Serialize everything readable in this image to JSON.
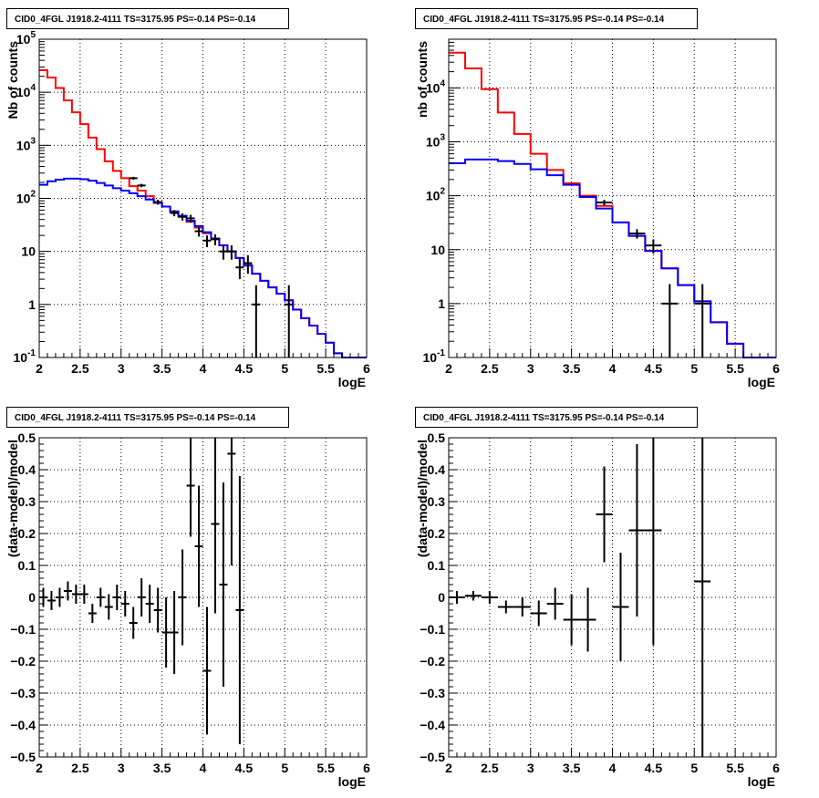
{
  "chart_data": [
    {
      "id": "tl",
      "type": "line",
      "title": "CID0_4FGL J1918.2-4111 TS=3175.95 PS=-0.14 PS=-0.14",
      "xlabel": "logE",
      "ylabel": "Nb of counts",
      "xlim": [
        2,
        6
      ],
      "ylim": [
        0.1,
        100000
      ],
      "log_y": true,
      "grid": true,
      "xticks": [
        "2",
        "2.5",
        "3",
        "3.5",
        "4",
        "4.5",
        "5",
        "5.5",
        "6"
      ],
      "yticks": [
        {
          "v": 0.1,
          "base": "10",
          "exp": "-1"
        },
        {
          "v": 1,
          "label": "1"
        },
        {
          "v": 10,
          "label": "10"
        },
        {
          "v": 100,
          "base": "10",
          "exp": "2"
        },
        {
          "v": 1000,
          "base": "10",
          "exp": "3"
        },
        {
          "v": 10000,
          "base": "10",
          "exp": "4"
        },
        {
          "v": 100000,
          "base": "10",
          "exp": "5"
        }
      ],
      "series": [
        {
          "color": "#ff0000",
          "bin_edges": [
            2,
            2.1,
            2.2,
            2.3,
            2.4,
            2.5,
            2.6,
            2.7,
            2.8,
            2.9,
            3,
            3.1,
            3.2,
            3.3,
            3.4,
            3.5,
            3.6,
            3.7,
            3.8,
            3.9,
            4,
            4.1,
            4.2,
            4.3,
            4.4,
            4.5,
            4.6,
            4.7,
            4.8,
            4.9,
            5,
            5.1,
            5.2,
            5.3,
            5.4,
            5.5,
            5.6,
            5.7,
            5.8,
            5.9,
            6
          ],
          "values": [
            26000,
            19000,
            12000,
            7000,
            4200,
            2500,
            1400,
            850,
            500,
            330,
            240,
            170,
            140,
            110,
            85,
            70,
            55,
            45,
            36,
            28,
            22,
            17,
            13,
            10,
            7.5,
            5.5,
            3.8,
            2.8,
            2.1,
            1.6,
            1.2,
            0.8,
            0.55,
            0.4,
            0.28,
            0.19,
            0.12,
            0.1,
            0.1,
            0.1
          ]
        },
        {
          "color": "#0000ff",
          "bin_edges": [
            2,
            2.1,
            2.2,
            2.3,
            2.4,
            2.5,
            2.6,
            2.7,
            2.8,
            2.9,
            3,
            3.1,
            3.2,
            3.3,
            3.4,
            3.5,
            3.6,
            3.7,
            3.8,
            3.9,
            4,
            4.1,
            4.2,
            4.3,
            4.4,
            4.5,
            4.6,
            4.7,
            4.8,
            4.9,
            5,
            5.1,
            5.2,
            5.3,
            5.4,
            5.5,
            5.6,
            5.7,
            5.8,
            5.9,
            6
          ],
          "values": [
            180,
            210,
            225,
            235,
            235,
            230,
            215,
            195,
            175,
            155,
            140,
            125,
            110,
            95,
            82,
            70,
            57,
            47,
            38,
            30,
            23,
            17.5,
            13,
            10,
            7.5,
            5.4,
            3.8,
            2.8,
            2.1,
            1.6,
            1.2,
            0.8,
            0.55,
            0.4,
            0.28,
            0.19,
            0.12,
            0.1,
            0.1,
            0.1
          ]
        }
      ],
      "points": [
        {
          "x": 3.15,
          "y": 240,
          "xerr": 0.05,
          "ylo": 225,
          "yhi": 255
        },
        {
          "x": 3.25,
          "y": 175,
          "xerr": 0.05,
          "ylo": 162,
          "yhi": 188
        },
        {
          "x": 3.45,
          "y": 85,
          "xerr": 0.05,
          "ylo": 76,
          "yhi": 94
        },
        {
          "x": 3.65,
          "y": 53,
          "xerr": 0.05,
          "ylo": 46,
          "yhi": 60
        },
        {
          "x": 3.75,
          "y": 45,
          "xerr": 0.05,
          "ylo": 38,
          "yhi": 52
        },
        {
          "x": 3.85,
          "y": 42,
          "xerr": 0.05,
          "ylo": 35,
          "yhi": 49
        },
        {
          "x": 3.95,
          "y": 24,
          "xerr": 0.05,
          "ylo": 19,
          "yhi": 29
        },
        {
          "x": 4.05,
          "y": 16,
          "xerr": 0.05,
          "ylo": 12,
          "yhi": 20
        },
        {
          "x": 4.15,
          "y": 17,
          "xerr": 0.05,
          "ylo": 13,
          "yhi": 21
        },
        {
          "x": 4.25,
          "y": 10,
          "xerr": 0.05,
          "ylo": 7,
          "yhi": 13
        },
        {
          "x": 4.35,
          "y": 10,
          "xerr": 0.05,
          "ylo": 7,
          "yhi": 13
        },
        {
          "x": 4.45,
          "y": 5,
          "xerr": 0.05,
          "ylo": 3,
          "yhi": 7.2
        },
        {
          "x": 4.55,
          "y": 6,
          "xerr": 0.05,
          "ylo": 3.8,
          "yhi": 8.5
        },
        {
          "x": 4.65,
          "y": 1,
          "xerr": 0.05,
          "ylo": 0.1,
          "yhi": 2.3
        },
        {
          "x": 5.05,
          "y": 1,
          "xerr": 0.05,
          "ylo": 0.1,
          "yhi": 2.3
        }
      ]
    },
    {
      "id": "tr",
      "type": "line",
      "title": "CID0_4FGL J1918.2-4111 TS=3175.95 PS=-0.14 PS=-0.14",
      "xlabel": "logE",
      "ylabel": "nb of counts",
      "xlim": [
        2,
        6
      ],
      "ylim": [
        0.1,
        80000
      ],
      "log_y": true,
      "grid": true,
      "xticks": [
        "2",
        "2.5",
        "3",
        "3.5",
        "4",
        "4.5",
        "5",
        "5.5",
        "6"
      ],
      "yticks": [
        {
          "v": 0.1,
          "base": "10",
          "exp": "-1"
        },
        {
          "v": 1,
          "label": "1"
        },
        {
          "v": 10,
          "label": "10"
        },
        {
          "v": 100,
          "base": "10",
          "exp": "2"
        },
        {
          "v": 1000,
          "base": "10",
          "exp": "3"
        },
        {
          "v": 10000,
          "base": "10",
          "exp": "4"
        }
      ],
      "series": [
        {
          "color": "#ff0000",
          "bin_edges": [
            2,
            2.2,
            2.4,
            2.6,
            2.8,
            3,
            3.2,
            3.4,
            3.6,
            3.8,
            4,
            4.2,
            4.4,
            4.6,
            4.8,
            5,
            5.2,
            5.4,
            5.6,
            5.8,
            6
          ],
          "values": [
            45000,
            23000,
            9500,
            3500,
            1400,
            600,
            300,
            170,
            100,
            65,
            32,
            18,
            9.5,
            4.5,
            2.2,
            1.1,
            0.45,
            0.18,
            0.1,
            0.1
          ]
        },
        {
          "color": "#0000ff",
          "bin_edges": [
            2,
            2.2,
            2.4,
            2.6,
            2.8,
            3,
            3.2,
            3.4,
            3.6,
            3.8,
            4,
            4.2,
            4.4,
            4.6,
            4.8,
            5,
            5.2,
            5.4,
            5.6,
            5.8,
            6
          ],
          "values": [
            400,
            470,
            470,
            440,
            390,
            310,
            240,
            160,
            95,
            58,
            32,
            18,
            9.5,
            4.5,
            2.2,
            1.1,
            0.45,
            0.18,
            0.1,
            0.1
          ]
        }
      ],
      "points": [
        {
          "x": 3.9,
          "y": 75,
          "xerr": 0.1,
          "ylo": 66,
          "yhi": 84
        },
        {
          "x": 4.3,
          "y": 20,
          "xerr": 0.1,
          "ylo": 16,
          "yhi": 24
        },
        {
          "x": 4.5,
          "y": 12,
          "xerr": 0.1,
          "ylo": 8.5,
          "yhi": 15.5
        },
        {
          "x": 4.7,
          "y": 1,
          "xerr": 0.1,
          "ylo": 0.1,
          "yhi": 2.3
        },
        {
          "x": 5.1,
          "y": 1,
          "xerr": 0.1,
          "ylo": 0.1,
          "yhi": 2.3
        }
      ]
    },
    {
      "id": "bl",
      "type": "scatter",
      "title": "CID0_4FGL J1918.2-4111 TS=3175.95 PS=-0.14 PS=-0.14",
      "xlabel": "logE",
      "ylabel": "(data-model)/model",
      "xlim": [
        2,
        6
      ],
      "ylim": [
        -0.5,
        0.5
      ],
      "log_y": false,
      "grid": true,
      "xticks": [
        "2",
        "2.5",
        "3",
        "3.5",
        "4",
        "4.5",
        "5",
        "5.5",
        "6"
      ],
      "yticks": [
        {
          "v": -0.5,
          "label": "−0.5"
        },
        {
          "v": -0.4,
          "label": "−0.4"
        },
        {
          "v": -0.3,
          "label": "−0.3"
        },
        {
          "v": -0.2,
          "label": "−0.2"
        },
        {
          "v": -0.1,
          "label": "−0.1"
        },
        {
          "v": 0,
          "label": "0"
        },
        {
          "v": 0.1,
          "label": "0.1"
        },
        {
          "v": 0.2,
          "label": "0.2"
        },
        {
          "v": 0.3,
          "label": "0.3"
        },
        {
          "v": 0.4,
          "label": "0.4"
        },
        {
          "v": 0.5,
          "label": "0.5"
        }
      ],
      "points": [
        {
          "x": 2.05,
          "y": 0.0,
          "xerr": 0.05,
          "yerr": 0.03
        },
        {
          "x": 2.15,
          "y": -0.01,
          "xerr": 0.05,
          "yerr": 0.03
        },
        {
          "x": 2.25,
          "y": 0.0,
          "xerr": 0.05,
          "yerr": 0.03
        },
        {
          "x": 2.35,
          "y": 0.02,
          "xerr": 0.05,
          "yerr": 0.03
        },
        {
          "x": 2.45,
          "y": 0.01,
          "xerr": 0.05,
          "yerr": 0.03
        },
        {
          "x": 2.55,
          "y": 0.01,
          "xerr": 0.05,
          "yerr": 0.03
        },
        {
          "x": 2.65,
          "y": -0.05,
          "xerr": 0.05,
          "yerr": 0.03
        },
        {
          "x": 2.75,
          "y": 0.0,
          "xerr": 0.05,
          "yerr": 0.03
        },
        {
          "x": 2.85,
          "y": -0.03,
          "xerr": 0.05,
          "yerr": 0.04
        },
        {
          "x": 2.95,
          "y": 0.0,
          "xerr": 0.05,
          "yerr": 0.04
        },
        {
          "x": 3.05,
          "y": -0.02,
          "xerr": 0.05,
          "yerr": 0.04
        },
        {
          "x": 3.15,
          "y": -0.08,
          "xerr": 0.05,
          "yerr": 0.05
        },
        {
          "x": 3.25,
          "y": 0.0,
          "xerr": 0.05,
          "yerr": 0.06
        },
        {
          "x": 3.35,
          "y": -0.02,
          "xerr": 0.05,
          "yerr": 0.06
        },
        {
          "x": 3.45,
          "y": -0.04,
          "xerr": 0.05,
          "yerr": 0.07
        },
        {
          "x": 3.55,
          "y": -0.11,
          "xerr": 0.05,
          "yerr": 0.11
        },
        {
          "x": 3.65,
          "y": -0.11,
          "xerr": 0.05,
          "yerr": 0.13
        },
        {
          "x": 3.75,
          "y": 0.0,
          "xerr": 0.05,
          "yerr": 0.15
        },
        {
          "x": 3.85,
          "y": 0.35,
          "xerr": 0.05,
          "yerr": 0.16
        },
        {
          "x": 3.95,
          "y": 0.16,
          "xerr": 0.05,
          "yerr": 0.19
        },
        {
          "x": 4.05,
          "y": -0.23,
          "xerr": 0.05,
          "yerr": 0.2
        },
        {
          "x": 4.15,
          "y": 0.23,
          "xerr": 0.05,
          "yerr": 0.28
        },
        {
          "x": 4.25,
          "y": 0.04,
          "xerr": 0.05,
          "yerr": 0.32
        },
        {
          "x": 4.35,
          "y": 0.45,
          "xerr": 0.05,
          "yerr": 0.35
        },
        {
          "x": 4.45,
          "y": -0.04,
          "xerr": 0.05,
          "yerr": 0.42
        }
      ]
    },
    {
      "id": "br",
      "type": "scatter",
      "title": "CID0_4FGL J1918.2-4111 TS=3175.95 PS=-0.14 PS=-0.14",
      "xlabel": "logE",
      "ylabel": "(data-model)/model",
      "xlim": [
        2,
        6
      ],
      "ylim": [
        -0.5,
        0.5
      ],
      "log_y": false,
      "grid": true,
      "xticks": [
        "2",
        "2.5",
        "3",
        "3.5",
        "4",
        "4.5",
        "5",
        "5.5",
        "6"
      ],
      "yticks": [
        {
          "v": -0.5,
          "label": "−0.5"
        },
        {
          "v": -0.4,
          "label": "−0.4"
        },
        {
          "v": -0.3,
          "label": "−0.3"
        },
        {
          "v": -0.2,
          "label": "−0.2"
        },
        {
          "v": -0.1,
          "label": "−0.1"
        },
        {
          "v": 0,
          "label": "0"
        },
        {
          "v": 0.1,
          "label": "0.1"
        },
        {
          "v": 0.2,
          "label": "0.2"
        },
        {
          "v": 0.3,
          "label": "0.3"
        },
        {
          "v": 0.4,
          "label": "0.4"
        },
        {
          "v": 0.5,
          "label": "0.5"
        }
      ],
      "points": [
        {
          "x": 2.1,
          "y": 0.0,
          "xerr": 0.1,
          "yerr": 0.02
        },
        {
          "x": 2.3,
          "y": 0.005,
          "xerr": 0.1,
          "yerr": 0.015
        },
        {
          "x": 2.5,
          "y": 0.0,
          "xerr": 0.1,
          "yerr": 0.02
        },
        {
          "x": 2.7,
          "y": -0.03,
          "xerr": 0.1,
          "yerr": 0.02
        },
        {
          "x": 2.9,
          "y": -0.03,
          "xerr": 0.1,
          "yerr": 0.03
        },
        {
          "x": 3.1,
          "y": -0.05,
          "xerr": 0.1,
          "yerr": 0.04
        },
        {
          "x": 3.3,
          "y": -0.02,
          "xerr": 0.1,
          "yerr": 0.05
        },
        {
          "x": 3.5,
          "y": -0.07,
          "xerr": 0.1,
          "yerr": 0.08
        },
        {
          "x": 3.7,
          "y": -0.07,
          "xerr": 0.1,
          "yerr": 0.1
        },
        {
          "x": 3.9,
          "y": 0.26,
          "xerr": 0.1,
          "yerr": 0.15
        },
        {
          "x": 4.1,
          "y": -0.03,
          "xerr": 0.1,
          "yerr": 0.17
        },
        {
          "x": 4.3,
          "y": 0.21,
          "xerr": 0.1,
          "yerr": 0.27
        },
        {
          "x": 4.5,
          "y": 0.21,
          "xerr": 0.1,
          "yerr": 0.36
        },
        {
          "x": 5.1,
          "y": 0.05,
          "xerr": 0.1,
          "yerr": 0.6
        }
      ]
    }
  ]
}
